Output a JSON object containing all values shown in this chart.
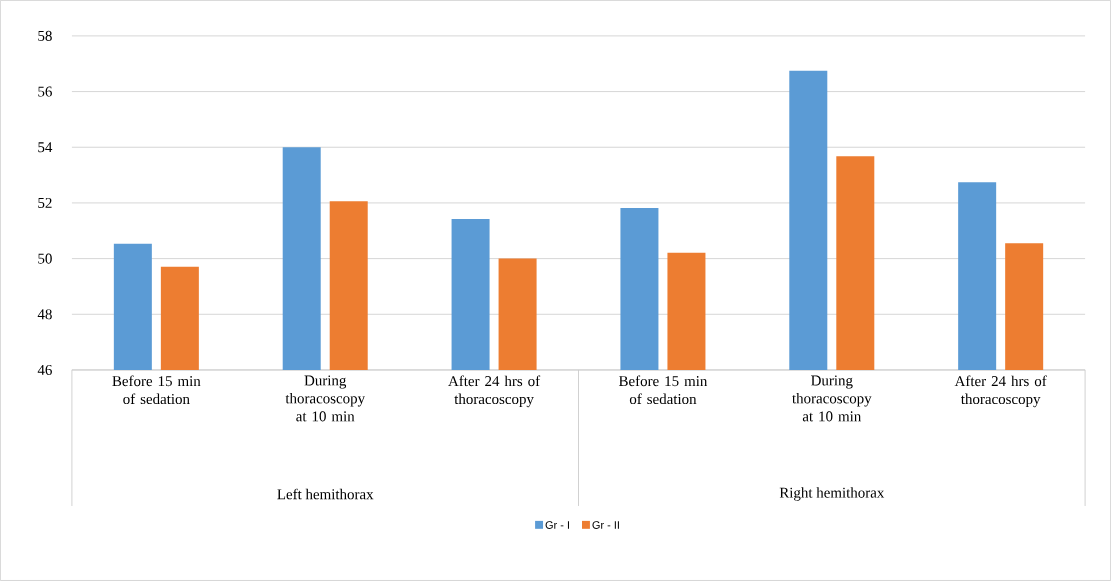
{
  "chart_data": {
    "type": "bar",
    "categories": [
      "Before 15 min of sedation",
      "During thoracoscopy at 10 min",
      "After 24 hrs of thoracoscopy",
      "Before 15 min of sedation",
      "During thoracoscopy at 10 min",
      "After 24 hrs of thoracoscopy"
    ],
    "series": [
      {
        "name": "Gr - I",
        "color": "#5b9bd5",
        "values": [
          50.53,
          54.0,
          51.42,
          51.82,
          56.75,
          52.74
        ]
      },
      {
        "name": "Gr - II",
        "color": "#ed7d31",
        "values": [
          49.71,
          52.06,
          50.0,
          50.21,
          53.68,
          50.55
        ]
      }
    ],
    "annotations": [
      "Left  hemithorax",
      "Right hemithorax"
    ],
    "ylim": [
      46,
      58
    ],
    "yticks": [
      46,
      48,
      50,
      52,
      54,
      56,
      58
    ],
    "grid": "y",
    "legend": "bottom"
  }
}
